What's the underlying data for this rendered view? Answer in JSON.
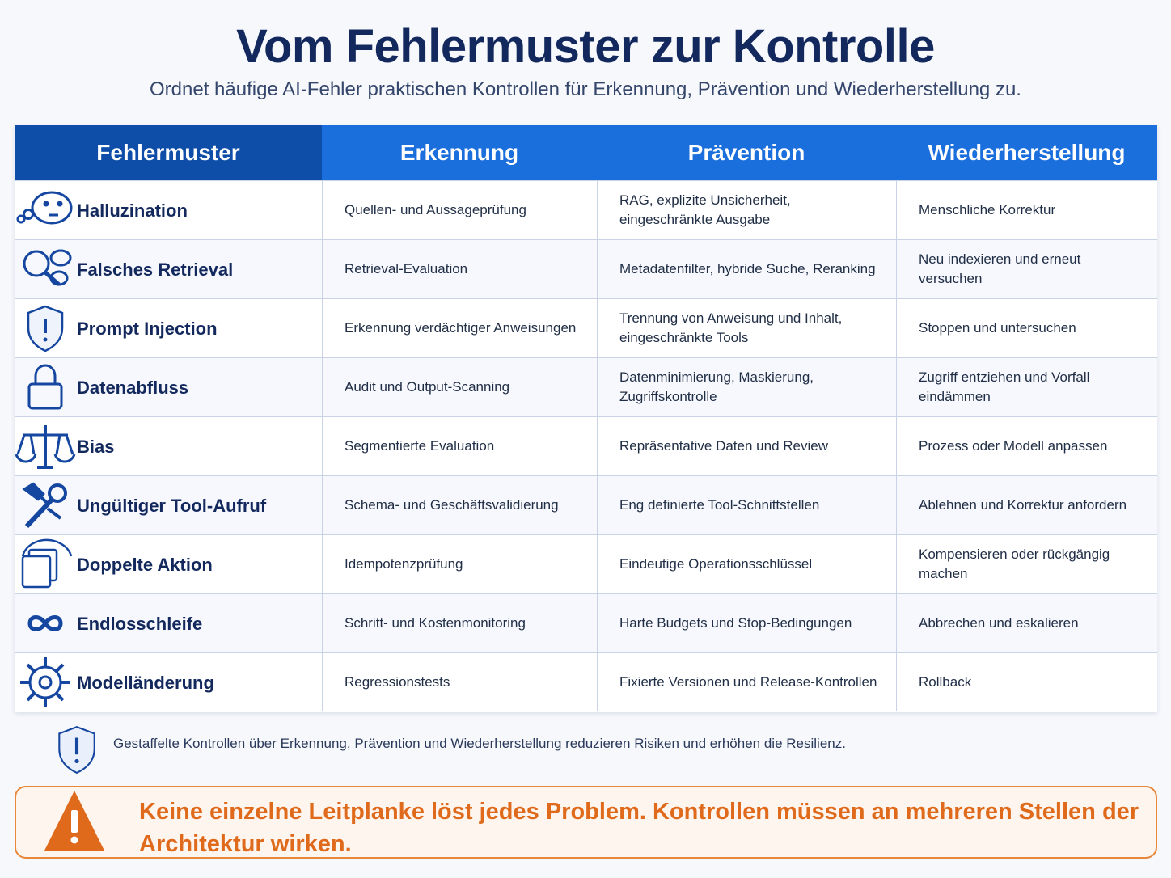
{
  "header": {
    "title": "Vom Fehlermuster zur Kontrolle",
    "subtitle": "Ordnet häufige AI-Fehler praktischen Kontrollen für Erkennung, Prävention und Wiederherstellung zu."
  },
  "table": {
    "columns": [
      "Fehlermuster",
      "Erkennung",
      "Prävention",
      "Wiederherstellung"
    ],
    "rows": [
      {
        "icon": "thinking-face-icon",
        "pattern": "Halluzination",
        "detection": "Quellen- und Aussageprüfung",
        "prevention": "RAG, explizite Unsicherheit, eingeschränkte Ausgabe",
        "recovery": "Menschliche Korrektur"
      },
      {
        "icon": "magnifier-icon",
        "pattern": "Falsches Retrieval",
        "detection": "Retrieval-Evaluation",
        "prevention": "Metadatenfilter, hybride Suche, Reranking",
        "recovery": "Neu indexieren und erneut versuchen"
      },
      {
        "icon": "shield-alert-icon",
        "pattern": "Prompt Injection",
        "detection": "Erkennung verdächtiger Anweisungen",
        "prevention": "Trennung von Anweisung und Inhalt, eingeschränkte Tools",
        "recovery": "Stoppen und untersuchen"
      },
      {
        "icon": "padlock-icon",
        "pattern": "Datenabfluss",
        "detection": "Audit und Output-Scanning",
        "prevention": "Datenminimierung, Maskierung, Zugriffskontrolle",
        "recovery": "Zugriff entziehen und Vorfall eindämmen"
      },
      {
        "icon": "scales-icon",
        "pattern": "Bias",
        "detection": "Segmentierte Evaluation",
        "prevention": "Repräsentative Daten und Review",
        "recovery": "Prozess oder Modell anpassen"
      },
      {
        "icon": "broken-wrench-icon",
        "pattern": "Ungültiger Tool-Aufruf",
        "detection": "Schema- und Geschäftsvalidierung",
        "prevention": "Eng definierte Tool-Schnittstellen",
        "recovery": "Ablehnen und Korrektur anfordern"
      },
      {
        "icon": "duplicate-icon",
        "pattern": "Doppelte Aktion",
        "detection": "Idempotenzprüfung",
        "prevention": "Eindeutige Operationsschlüssel",
        "recovery": "Kompensieren oder rückgängig machen"
      },
      {
        "icon": "infinity-icon",
        "pattern": "Endlosschleife",
        "detection": "Schritt- und Kostenmonitoring",
        "prevention": "Harte Budgets und Stop-Bedingungen",
        "recovery": "Abbrechen und eskalieren"
      },
      {
        "icon": "gear-icon",
        "pattern": "Modelländerung",
        "detection": "Regressionstests",
        "prevention": "Fixierte Versionen und Release-Kontrollen",
        "recovery": "Rollback"
      }
    ]
  },
  "note": {
    "icon": "shield-alert-icon",
    "text": "Gestaffelte Kontrollen über Erkennung, Prävention und Wiederherstellung reduzieren Risiken und erhöhen die Resilienz."
  },
  "warning": {
    "icon": "warning-triangle-icon",
    "text": "Keine einzelne Leitplanke löst jedes Problem. Kontrollen müssen an mehreren Stellen der Architektur wirken."
  },
  "colors": {
    "title": "#13295e",
    "header_first": "#0f4ea8",
    "header": "#1b6fdd",
    "icon": "#1546a0",
    "warning": "#e06a1c"
  }
}
